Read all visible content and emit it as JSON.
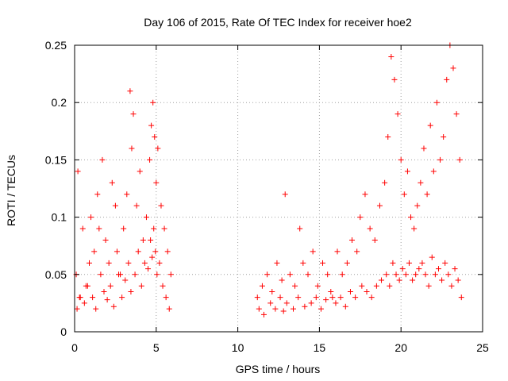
{
  "chart_data": {
    "type": "scatter",
    "title": "Day 106 of 2015, Rate Of TEC Index for receiver hoe2",
    "xlabel": "GPS time / hours",
    "ylabel": "ROTI / TECUs",
    "xlim": [
      0,
      25
    ],
    "ylim": [
      0,
      0.25
    ],
    "xticks": [
      0,
      5,
      10,
      15,
      20,
      25
    ],
    "xtick_labels": [
      "0",
      "5",
      "10",
      "15",
      "20",
      "25"
    ],
    "yticks": [
      0,
      0.05,
      0.1,
      0.15,
      0.2,
      0.25
    ],
    "ytick_labels": [
      "0",
      "0.05",
      "0.1",
      "0.15",
      "0.2",
      "0.25"
    ],
    "grid": true,
    "marker": "plus",
    "color": "#ff0000",
    "series": [
      {
        "x": [
          0.1,
          0.2,
          0.3,
          0.5,
          0.7,
          0.9,
          1.0,
          1.2,
          1.4,
          1.5,
          1.6,
          1.7,
          1.9,
          2.1,
          2.3,
          2.5,
          2.6,
          2.8,
          3.0,
          3.2,
          3.4,
          3.5,
          3.6,
          3.8,
          4.0,
          4.2,
          4.4,
          4.6,
          4.7,
          4.8,
          4.9,
          5.0,
          5.1,
          5.3,
          5.5,
          5.7,
          5.9,
          0.15,
          0.35,
          0.6,
          0.8,
          1.1,
          1.3,
          1.8,
          2.0,
          2.2,
          2.4,
          2.7,
          2.9,
          3.1,
          3.3,
          3.45,
          3.7,
          3.9,
          4.1,
          4.3,
          4.5,
          4.65,
          4.75,
          4.85,
          4.95,
          5.05,
          5.2,
          5.4,
          5.6,
          5.8,
          11.2,
          11.5,
          11.8,
          12.1,
          12.4,
          12.7,
          12.9,
          13.2,
          13.5,
          13.8,
          14.0,
          14.3,
          14.6,
          14.9,
          15.2,
          15.5,
          15.8,
          16.1,
          16.4,
          16.7,
          17.0,
          17.3,
          17.5,
          17.8,
          18.1,
          18.4,
          18.7,
          19.0,
          19.2,
          19.4,
          19.6,
          19.8,
          20.0,
          20.2,
          20.4,
          20.6,
          20.8,
          21.0,
          21.2,
          21.4,
          21.6,
          21.8,
          22.0,
          22.2,
          22.4,
          22.6,
          22.8,
          23.0,
          23.2,
          23.4,
          23.6,
          11.3,
          11.6,
          12.0,
          12.3,
          12.6,
          12.8,
          13.0,
          13.4,
          13.7,
          14.1,
          14.5,
          14.8,
          15.1,
          15.4,
          15.7,
          16.0,
          16.3,
          16.6,
          16.9,
          17.2,
          17.6,
          17.9,
          18.2,
          18.5,
          18.8,
          19.1,
          19.3,
          19.5,
          19.7,
          19.9,
          20.1,
          20.3,
          20.5,
          20.7,
          20.9,
          21.1,
          21.3,
          21.5,
          21.7,
          21.9,
          22.1,
          22.3,
          22.5,
          22.7,
          22.9,
          23.1,
          23.3,
          23.5,
          23.7
        ],
        "y": [
          0.05,
          0.14,
          0.03,
          0.09,
          0.04,
          0.06,
          0.1,
          0.07,
          0.12,
          0.09,
          0.05,
          0.15,
          0.08,
          0.06,
          0.13,
          0.11,
          0.07,
          0.05,
          0.09,
          0.12,
          0.21,
          0.16,
          0.19,
          0.11,
          0.14,
          0.08,
          0.1,
          0.15,
          0.18,
          0.2,
          0.17,
          0.13,
          0.16,
          0.11,
          0.09,
          0.07,
          0.05,
          0.02,
          0.03,
          0.025,
          0.04,
          0.03,
          0.02,
          0.035,
          0.028,
          0.04,
          0.022,
          0.05,
          0.03,
          0.045,
          0.06,
          0.035,
          0.05,
          0.07,
          0.04,
          0.06,
          0.055,
          0.08,
          0.065,
          0.09,
          0.07,
          0.05,
          0.06,
          0.04,
          0.03,
          0.02,
          0.03,
          0.04,
          0.05,
          0.035,
          0.06,
          0.045,
          0.12,
          0.05,
          0.04,
          0.09,
          0.06,
          0.05,
          0.07,
          0.04,
          0.06,
          0.05,
          0.03,
          0.07,
          0.05,
          0.06,
          0.08,
          0.07,
          0.1,
          0.12,
          0.09,
          0.08,
          0.11,
          0.13,
          0.17,
          0.24,
          0.22,
          0.19,
          0.15,
          0.12,
          0.14,
          0.1,
          0.09,
          0.11,
          0.13,
          0.16,
          0.12,
          0.18,
          0.14,
          0.2,
          0.15,
          0.17,
          0.22,
          0.25,
          0.23,
          0.19,
          0.15,
          0.02,
          0.015,
          0.025,
          0.02,
          0.03,
          0.018,
          0.025,
          0.02,
          0.03,
          0.022,
          0.025,
          0.03,
          0.02,
          0.028,
          0.035,
          0.025,
          0.03,
          0.022,
          0.035,
          0.03,
          0.04,
          0.035,
          0.03,
          0.04,
          0.045,
          0.05,
          0.04,
          0.06,
          0.05,
          0.045,
          0.055,
          0.05,
          0.06,
          0.045,
          0.05,
          0.055,
          0.06,
          0.05,
          0.04,
          0.065,
          0.05,
          0.055,
          0.045,
          0.06,
          0.05,
          0.04,
          0.055,
          0.045,
          0.03
        ]
      }
    ]
  }
}
